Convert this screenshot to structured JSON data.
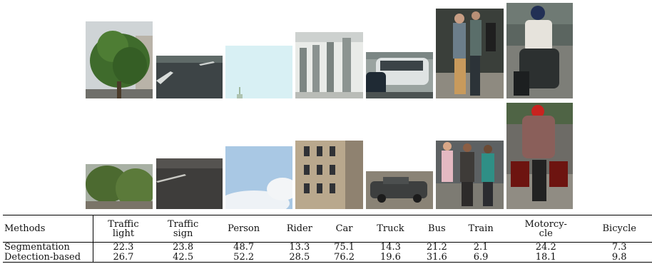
{
  "table": {
    "header": {
      "methods": "Methods",
      "columns": [
        {
          "line1": "Traffic",
          "line2": "light"
        },
        {
          "line1": "Traffic",
          "line2": "sign"
        },
        {
          "line1": "Person",
          "line2": ""
        },
        {
          "line1": "Rider",
          "line2": ""
        },
        {
          "line1": "Car",
          "line2": ""
        },
        {
          "line1": "Truck",
          "line2": ""
        },
        {
          "line1": "Bus",
          "line2": ""
        },
        {
          "line1": "Train",
          "line2": ""
        },
        {
          "line1": "Motorcy-",
          "line2": "cle"
        },
        {
          "line1": "Bicycle",
          "line2": ""
        }
      ]
    },
    "rows": [
      {
        "method": "Segmentation",
        "values": [
          "22.3",
          "23.8",
          "48.7",
          "13.3",
          "75.1",
          "14.3",
          "21.2",
          "2.1",
          "24.2",
          "7.3"
        ]
      },
      {
        "method": "Detection-based",
        "values": [
          "26.7",
          "42.5",
          "52.2",
          "28.5",
          "76.2",
          "19.6",
          "31.6",
          "6.9",
          "18.1",
          "9.8"
        ]
      }
    ]
  }
}
